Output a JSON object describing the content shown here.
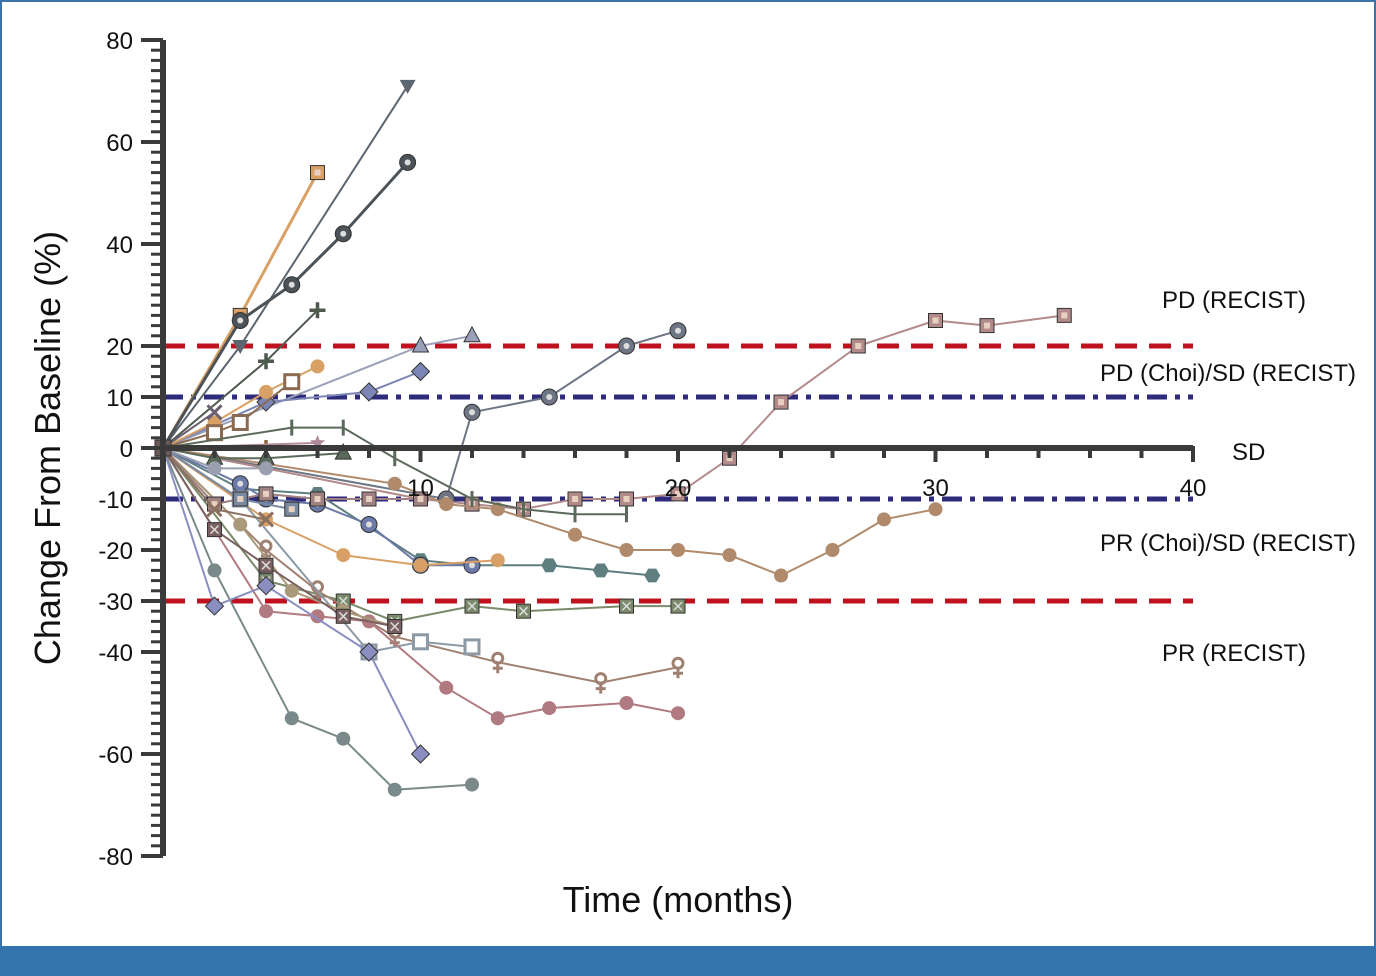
{
  "colors": {
    "frame": "#3b73a8",
    "footer_bar": "#3474ac",
    "axis": "#3a3a3a",
    "pd_pr_recist_line": "#c0121e",
    "choi_line": "#2e2a7c"
  },
  "chart_data": {
    "type": "line",
    "title": "",
    "xlabel": "Time (months)",
    "ylabel": "Change From Baseline (%)",
    "xlim": [
      0,
      40
    ],
    "ylim": [
      -80,
      80
    ],
    "x_ticks": [
      {
        "value": 10,
        "label": "10"
      },
      {
        "value": 20,
        "label": "20"
      },
      {
        "value": 30,
        "label": "30"
      },
      {
        "value": 40,
        "label": "40"
      }
    ],
    "y_ticks": [
      {
        "value": 80,
        "label": "80"
      },
      {
        "value": 60,
        "label": "60"
      },
      {
        "value": 40,
        "label": "40"
      },
      {
        "value": 20,
        "label": "20"
      },
      {
        "value": 10,
        "label": "10"
      },
      {
        "value": 0,
        "label": "0"
      },
      {
        "value": -10,
        "label": "-10"
      },
      {
        "value": -20,
        "label": "-20"
      },
      {
        "value": -30,
        "label": "-30"
      },
      {
        "value": -40,
        "label": "-40"
      },
      {
        "value": -60,
        "label": "-60"
      },
      {
        "value": -80,
        "label": "-80"
      }
    ],
    "grid": false,
    "legend": "none",
    "reference_lines": [
      {
        "y": 20,
        "style": "dashed",
        "color": "#c0121e",
        "label": "PD (RECIST)"
      },
      {
        "y": 10,
        "style": "dash-dot",
        "color": "#2e2a7c",
        "label": "PD (Choi)/SD (RECIST)"
      },
      {
        "y": 0,
        "style": "axis",
        "color": "#3a3a3a",
        "label": "SD"
      },
      {
        "y": -10,
        "style": "dash-dot",
        "color": "#2e2a7c",
        "label": "PR (Choi)/SD (RECIST)"
      },
      {
        "y": -30,
        "style": "dashed",
        "color": "#c0121e",
        "label": "PR (RECIST)"
      }
    ],
    "series": [
      {
        "color": "#5c6670",
        "marker": "triangle-down",
        "width": 2,
        "x": [
          0,
          3,
          9.5
        ],
        "y": [
          0,
          20,
          71
        ]
      },
      {
        "color": "#d9a066",
        "marker": "square",
        "width": 3,
        "x": [
          0,
          3,
          6
        ],
        "y": [
          0,
          26,
          54
        ]
      },
      {
        "color": "#4b5358",
        "marker": "circle-dot",
        "width": 3,
        "x": [
          0,
          3,
          5,
          7,
          9.5
        ],
        "y": [
          0,
          25,
          32,
          42,
          56
        ]
      },
      {
        "color": "#4f5a4f",
        "marker": "plus",
        "width": 2,
        "x": [
          0,
          4,
          6
        ],
        "y": [
          0,
          17,
          27
        ]
      },
      {
        "color": "#9aa0b8",
        "marker": "triangle",
        "width": 2,
        "x": [
          0,
          10,
          12
        ],
        "y": [
          0,
          20,
          22
        ]
      },
      {
        "color": "#7c86b6",
        "marker": "diamond",
        "width": 2,
        "x": [
          0,
          4,
          8,
          10
        ],
        "y": [
          0,
          9,
          11,
          15
        ]
      },
      {
        "color": "#d9a066",
        "marker": "circle",
        "width": 2,
        "x": [
          0,
          2,
          4,
          6
        ],
        "y": [
          0,
          5,
          11,
          16
        ]
      },
      {
        "color": "#8a6a50",
        "marker": "square-open",
        "width": 2,
        "x": [
          0,
          2,
          3,
          5
        ],
        "y": [
          0,
          3,
          5,
          13
        ]
      },
      {
        "color": "#6e7584",
        "marker": "circle-dot",
        "width": 2,
        "x": [
          0,
          11,
          12,
          15,
          18,
          20
        ],
        "y": [
          0,
          -10,
          7,
          10,
          20,
          23
        ]
      },
      {
        "color": "#b38a8a",
        "marker": "square",
        "width": 2,
        "x": [
          0,
          10,
          12,
          14,
          16,
          18,
          20,
          22,
          24,
          27,
          30,
          32,
          35
        ],
        "y": [
          0,
          -10,
          -11,
          -12,
          -10,
          -10,
          -9,
          -2,
          9,
          20,
          25,
          24,
          26
        ]
      },
      {
        "color": "#b08a6a",
        "marker": "circle",
        "width": 2,
        "x": [
          0,
          9,
          11,
          13,
          16,
          18,
          20,
          22,
          24,
          26,
          28,
          30
        ],
        "y": [
          0,
          -7,
          -11,
          -12,
          -17,
          -20,
          -20,
          -21,
          -25,
          -20,
          -14,
          -12
        ]
      },
      {
        "color": "#5c6a5c",
        "marker": "tick",
        "width": 2,
        "x": [
          0,
          5,
          7,
          9,
          12,
          14,
          16,
          18
        ],
        "y": [
          0,
          4,
          4,
          -2,
          -10,
          -12,
          -13,
          -13
        ]
      },
      {
        "color": "#5e7e80",
        "marker": "hexagon",
        "width": 2,
        "x": [
          0,
          3,
          6,
          10,
          12,
          15,
          17,
          19
        ],
        "y": [
          0,
          -8,
          -9,
          -22,
          -23,
          -23,
          -24,
          -25
        ]
      },
      {
        "color": "#6b7aa8",
        "marker": "circle-dot",
        "width": 2,
        "x": [
          0,
          3,
          4,
          6,
          8,
          10,
          12
        ],
        "y": [
          0,
          -7,
          -10,
          -11,
          -15,
          -23,
          -23
        ]
      },
      {
        "color": "#d9a066",
        "marker": "circle",
        "width": 2,
        "x": [
          0,
          4,
          7,
          10,
          13
        ],
        "y": [
          0,
          -14,
          -21,
          -23,
          -22
        ]
      },
      {
        "color": "#7a8a6a",
        "marker": "square-x",
        "width": 2,
        "x": [
          0,
          4,
          7,
          9,
          12,
          14,
          18,
          20
        ],
        "y": [
          0,
          -26,
          -30,
          -34,
          -31,
          -32,
          -31,
          -31
        ]
      },
      {
        "color": "#a08070",
        "marker": "female",
        "width": 2,
        "x": [
          0,
          4,
          6,
          9,
          13,
          17,
          20
        ],
        "y": [
          0,
          -20,
          -28,
          -37,
          -42,
          -46,
          -43
        ]
      },
      {
        "color": "#8c9aa6",
        "marker": "square-open",
        "width": 2,
        "x": [
          0,
          3,
          8,
          10,
          12
        ],
        "y": [
          0,
          -10,
          -40,
          -38,
          -39
        ]
      },
      {
        "color": "#b07a80",
        "marker": "circle",
        "width": 2,
        "x": [
          0,
          4,
          6,
          8,
          11,
          13,
          15,
          18,
          20
        ],
        "y": [
          0,
          -32,
          -33,
          -34,
          -47,
          -53,
          -51,
          -50,
          -52
        ]
      },
      {
        "color": "#a89a7a",
        "marker": "circle",
        "width": 2,
        "x": [
          0,
          3,
          5,
          7,
          9
        ],
        "y": [
          0,
          -15,
          -28,
          -32,
          -35
        ]
      },
      {
        "color": "#7a8a8a",
        "marker": "circle",
        "width": 2,
        "x": [
          0,
          2,
          5,
          7,
          9,
          12
        ],
        "y": [
          0,
          -24,
          -53,
          -57,
          -67,
          -66
        ]
      },
      {
        "color": "#8a8ec0",
        "marker": "diamond",
        "width": 2,
        "x": [
          0,
          2,
          4,
          8,
          10
        ],
        "y": [
          0,
          -31,
          -27,
          -40,
          -60
        ]
      },
      {
        "color": "#7a6060",
        "marker": "square-x",
        "width": 2,
        "x": [
          0,
          2,
          4,
          7,
          9
        ],
        "y": [
          0,
          -16,
          -23,
          -33,
          -35
        ]
      },
      {
        "color": "#a08080",
        "marker": "square",
        "width": 2,
        "x": [
          0,
          2,
          4,
          6,
          8,
          10
        ],
        "y": [
          0,
          -11,
          -9,
          -10,
          -10,
          -10
        ]
      },
      {
        "color": "#8a7060",
        "marker": "x",
        "width": 2,
        "x": [
          0,
          2,
          4
        ],
        "y": [
          0,
          -12,
          -14
        ]
      },
      {
        "color": "#5a6a5a",
        "marker": "triangle",
        "width": 2,
        "x": [
          0,
          2,
          4,
          7
        ],
        "y": [
          0,
          -2,
          -2,
          -1
        ]
      },
      {
        "color": "#8a6a40",
        "marker": "plus",
        "width": 2,
        "x": [
          0,
          4
        ],
        "y": [
          0,
          0
        ]
      },
      {
        "color": "#b08a9a",
        "marker": "star",
        "width": 2,
        "x": [
          0,
          6
        ],
        "y": [
          0,
          1
        ]
      },
      {
        "color": "#6a6070",
        "marker": "x",
        "width": 2,
        "x": [
          0,
          2
        ],
        "y": [
          0,
          7
        ]
      },
      {
        "color": "#7a8aa0",
        "marker": "square",
        "width": 2,
        "x": [
          0,
          3,
          5
        ],
        "y": [
          0,
          -10,
          -12
        ]
      },
      {
        "color": "#9aa0b0",
        "marker": "circle",
        "width": 2,
        "x": [
          0,
          2,
          4
        ],
        "y": [
          0,
          -4,
          -4
        ]
      }
    ]
  }
}
